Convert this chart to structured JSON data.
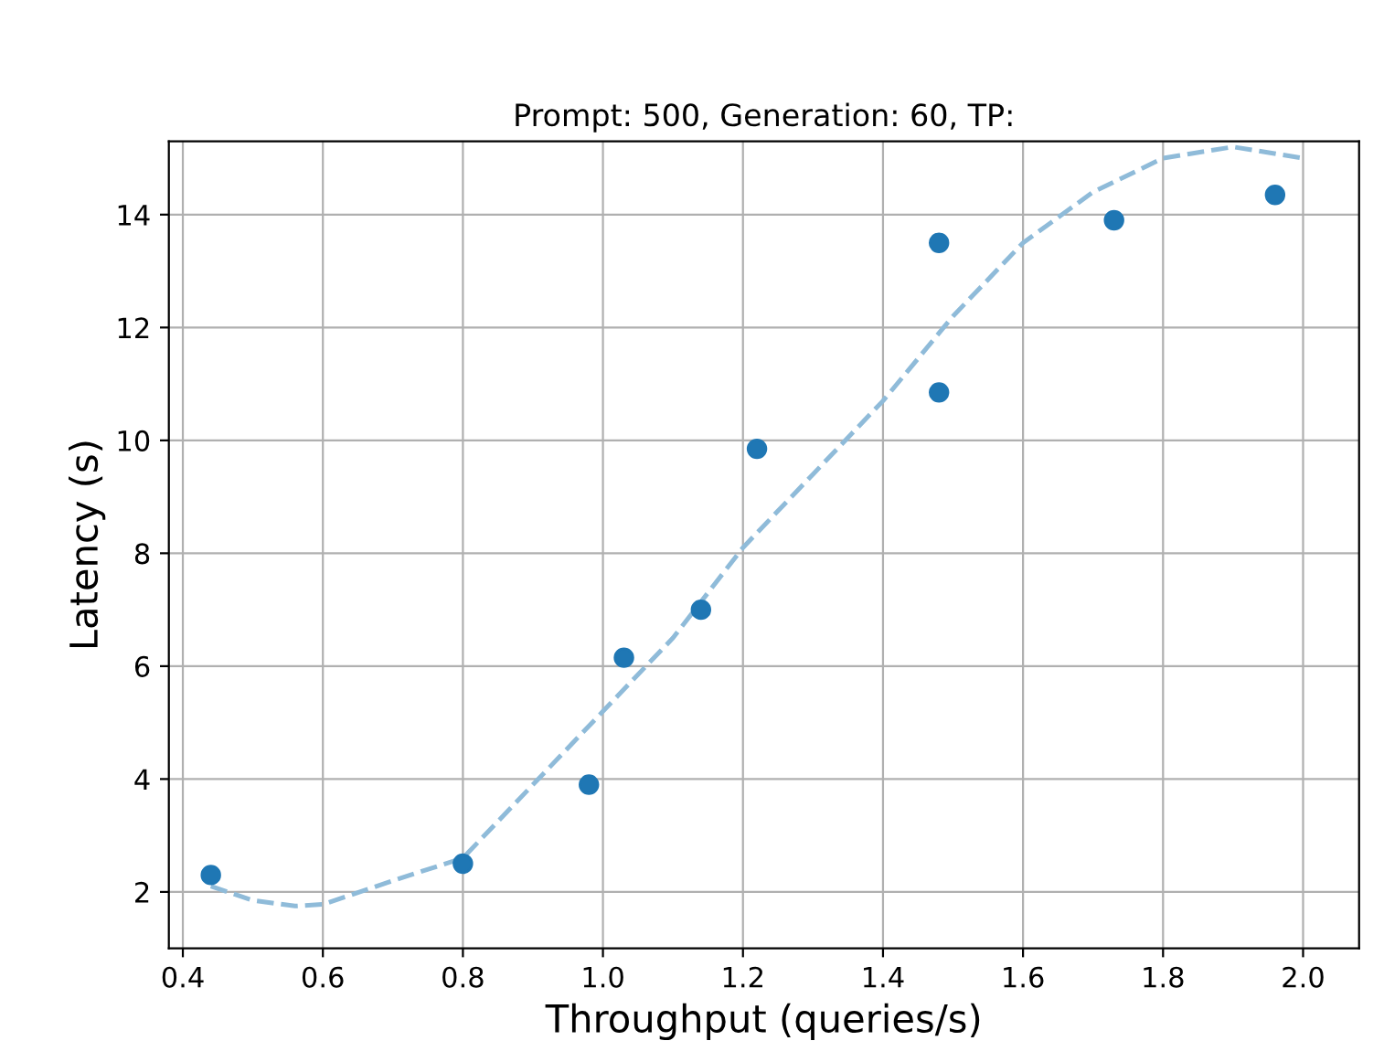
{
  "chart_data": {
    "type": "scatter",
    "title": "Prompt: 500, Generation: 60, TP:",
    "xlabel": "Throughput (queries/s)",
    "ylabel": "Latency (s)",
    "x": [
      0.44,
      0.8,
      0.98,
      1.03,
      1.14,
      1.22,
      1.48,
      1.48,
      1.73,
      1.96
    ],
    "series": [
      {
        "marker": "circle",
        "color": "#1f77b4",
        "values": [
          2.3,
          2.5,
          3.9,
          6.15,
          7.0,
          9.85,
          13.5,
          10.85,
          13.9,
          14.35
        ]
      },
      {
        "type": "line",
        "color": "#8fbbd9",
        "line_style": "dashed",
        "marker": "none",
        "x": [
          0.44,
          0.5,
          0.56,
          0.6,
          0.7,
          0.8,
          0.9,
          1.0,
          1.1,
          1.2,
          1.3,
          1.4,
          1.5,
          1.6,
          1.7,
          1.8,
          1.9,
          2.0
        ],
        "values": [
          2.1,
          1.85,
          1.75,
          1.78,
          2.2,
          2.6,
          3.9,
          5.2,
          6.5,
          8.1,
          9.4,
          10.7,
          12.2,
          13.5,
          14.4,
          15.0,
          15.2,
          15.0
        ]
      }
    ],
    "xlim": [
      0.38,
      2.08
    ],
    "ylim": [
      1.0,
      15.3
    ],
    "xticks": [
      0.4,
      0.6,
      0.8,
      {
        "value": 1.0,
        "label": "1.0"
      },
      1.2,
      1.4,
      1.6,
      1.8,
      {
        "value": 2.0,
        "label": "2.0"
      }
    ],
    "yticks": [
      2,
      4,
      6,
      8,
      10,
      12,
      14
    ],
    "grid": true
  }
}
